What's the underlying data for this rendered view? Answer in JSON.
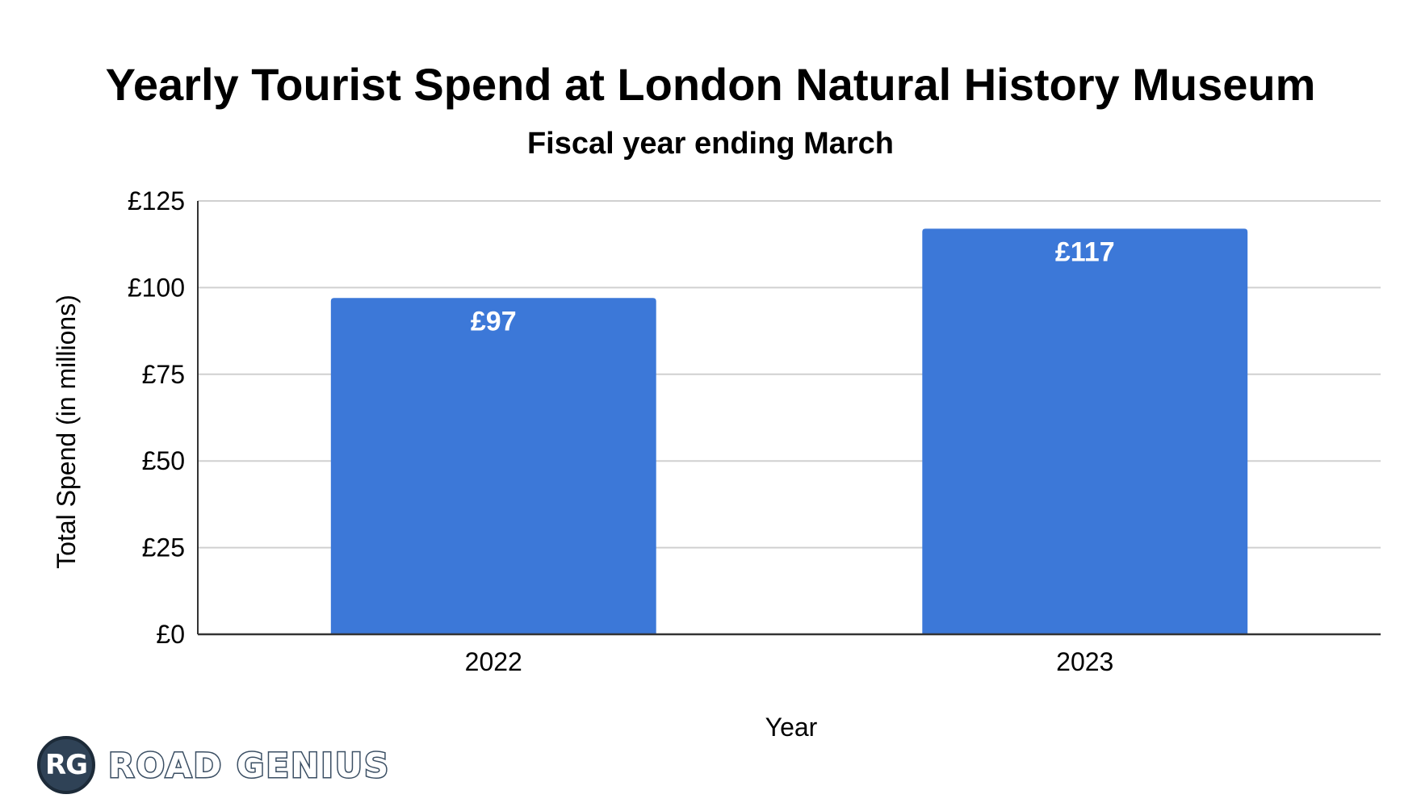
{
  "chart_data": {
    "type": "bar",
    "title": "Yearly Tourist Spend at London Natural History Museum",
    "subtitle": "Fiscal year ending March",
    "xlabel": "Year",
    "ylabel": "Total Spend (in millions)",
    "categories": [
      "2022",
      "2023"
    ],
    "values": [
      97,
      117
    ],
    "data_labels": [
      "£97",
      "£117"
    ],
    "ylim": [
      0,
      125
    ],
    "yticks": [
      0,
      25,
      50,
      75,
      100,
      125
    ],
    "ytick_labels": [
      "£0",
      "£25",
      "£50",
      "£75",
      "£100",
      "£125"
    ],
    "grid": true,
    "bar_color": "#3c78d8"
  },
  "logo": {
    "badge_text": "RG",
    "wordmark": "ROAD GENIUS"
  }
}
